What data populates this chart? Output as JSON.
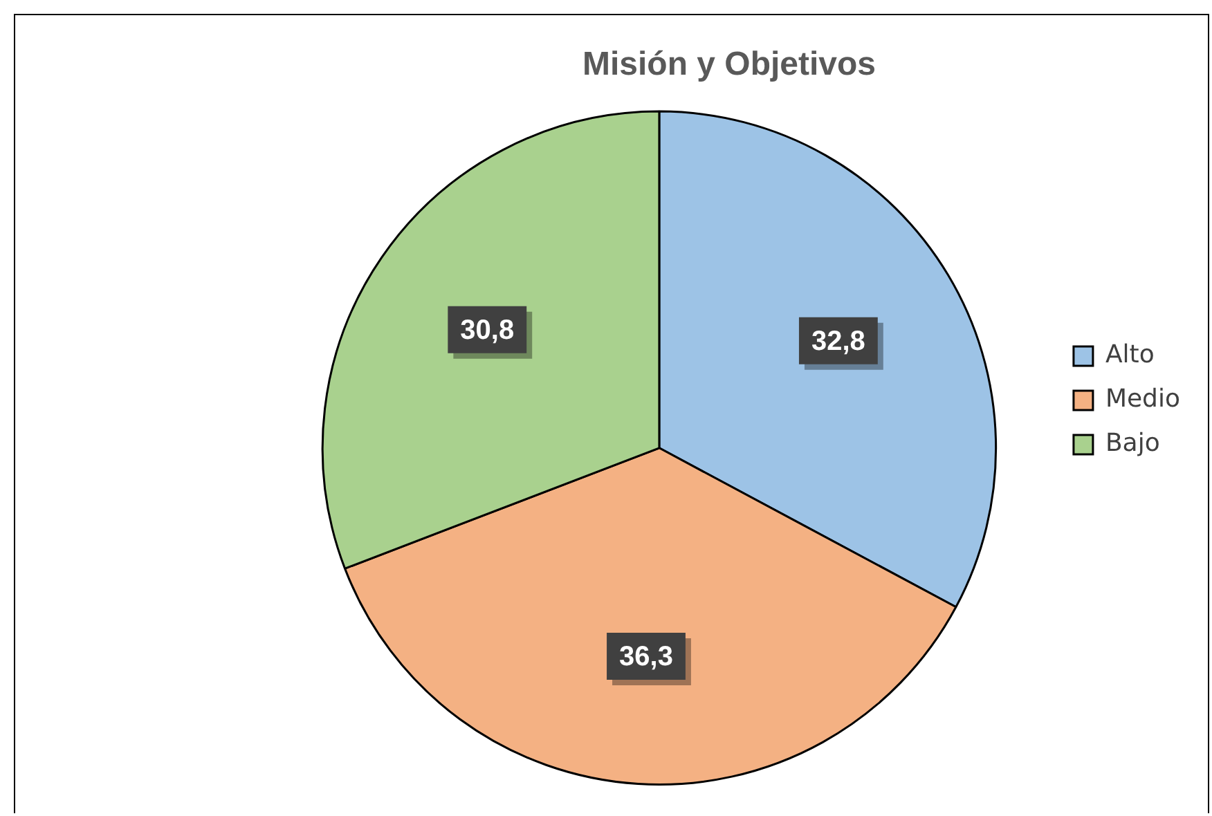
{
  "chart_data": {
    "type": "pie",
    "title": "Misión y Objetivos",
    "categories": [
      "Alto",
      "Medio",
      "Bajo"
    ],
    "values": [
      32.8,
      36.3,
      30.8
    ],
    "colors": [
      "#9dc3e6",
      "#f4b183",
      "#a9d18e"
    ],
    "value_labels": [
      "32,8",
      "36,3",
      "30,8"
    ],
    "legend": "right"
  }
}
